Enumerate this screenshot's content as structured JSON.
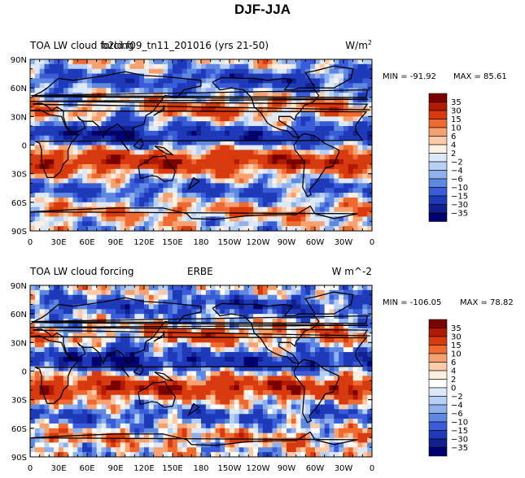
{
  "title": "DJF-JJA",
  "chart_data": [
    {
      "type": "heatmap",
      "variable": "TOA LW cloud forcing",
      "case": "b2ld.f09_tn11_201016 (yrs 21-50)",
      "units": "W/m",
      "units_sup": "2",
      "min_label": "MIN = -91.92",
      "max_label": "MAX =  85.61",
      "min": -91.92,
      "max": 85.61,
      "lat_ticks": [
        "90N",
        "60N",
        "30N",
        "0",
        "30S",
        "60S",
        "90S"
      ],
      "lat_values": [
        90,
        60,
        30,
        0,
        -30,
        -60,
        -90
      ],
      "lon_ticks": [
        "0",
        "30E",
        "60E",
        "90E",
        "120E",
        "150E",
        "180",
        "150W",
        "120W",
        "90W",
        "60W",
        "30W",
        "0"
      ],
      "lon_values": [
        0,
        30,
        60,
        90,
        120,
        150,
        180,
        210,
        240,
        270,
        300,
        330,
        360
      ],
      "levels": [
        35,
        30,
        15,
        10,
        6,
        4,
        2,
        -2,
        -4,
        -6,
        -10,
        -15,
        -30,
        -35
      ],
      "colors": [
        "#7a0000",
        "#b01a00",
        "#d83a10",
        "#ee6a30",
        "#f7a070",
        "#fbcaa8",
        "#fdf0e0",
        "#dde8f8",
        "#b8d0f4",
        "#8fb0ec",
        "#5f88e0",
        "#3a5cd8",
        "#1e3ab8",
        "#102090",
        "#000070"
      ]
    },
    {
      "type": "heatmap",
      "variable": "TOA LW cloud forcing",
      "case": "ERBE",
      "units": "W m^-2",
      "units_sup": "",
      "min_label": "MIN = -106.05",
      "max_label": "MAX =  78.82",
      "min": -106.05,
      "max": 78.82,
      "lat_ticks": [
        "90N",
        "60N",
        "30N",
        "0",
        "30S",
        "60S",
        "90S"
      ],
      "lat_values": [
        90,
        60,
        30,
        0,
        -30,
        -60,
        -90
      ],
      "lon_ticks": [
        "0",
        "30E",
        "60E",
        "90E",
        "120E",
        "150E",
        "180",
        "150W",
        "120W",
        "90W",
        "60W",
        "30W",
        "0"
      ],
      "lon_values": [
        0,
        30,
        60,
        90,
        120,
        150,
        180,
        210,
        240,
        270,
        300,
        330,
        360
      ],
      "levels": [
        35,
        30,
        15,
        10,
        6,
        4,
        2,
        0,
        -2,
        -4,
        -6,
        -10,
        -15,
        -30,
        -35
      ],
      "colors": [
        "#7a0000",
        "#b01a00",
        "#d83a10",
        "#ee6a30",
        "#f7a070",
        "#fbcaa8",
        "#fdf0e0",
        "#ffffff",
        "#dde8f8",
        "#b8d0f4",
        "#8fb0ec",
        "#5f88e0",
        "#3a5cd8",
        "#1e3ab8",
        "#102090",
        "#000070"
      ]
    }
  ]
}
